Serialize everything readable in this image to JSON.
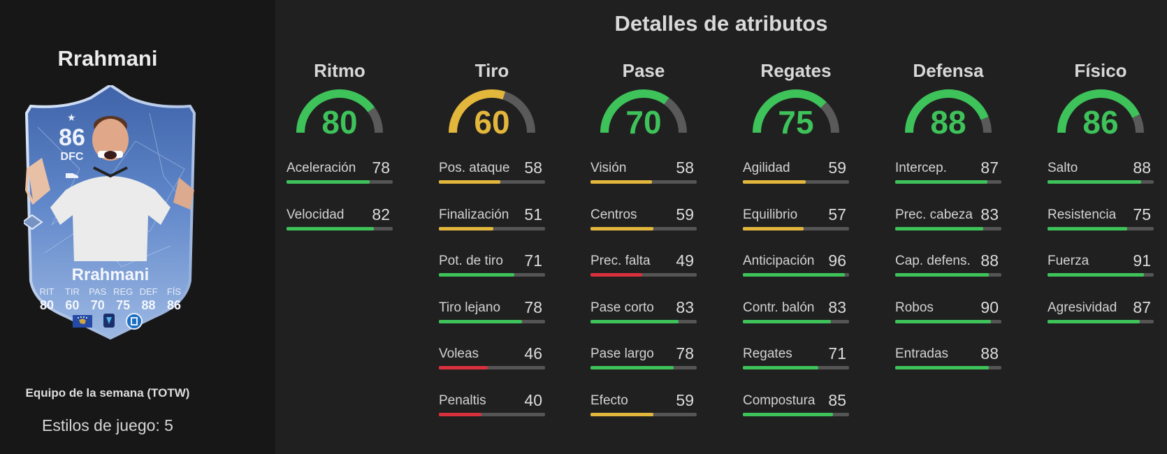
{
  "player": {
    "name": "Rrahmani",
    "edition": "Equipo de la semana (TOTW)",
    "playstyles": "Estilos de juego: 5"
  },
  "card": {
    "rating": "86",
    "position": "DFC",
    "name": "Rrahmani",
    "stats": [
      {
        "label": "RIT",
        "value": "80"
      },
      {
        "label": "TIR",
        "value": "60"
      },
      {
        "label": "PAS",
        "value": "70"
      },
      {
        "label": "REG",
        "value": "75"
      },
      {
        "label": "DEF",
        "value": "88"
      },
      {
        "label": "FÍS",
        "value": "86"
      }
    ]
  },
  "title": "Detalles de atributos",
  "colors": {
    "green": "#3ec25a",
    "yellow": "#e3b63c",
    "red": "#d9303d",
    "track": "#555555"
  },
  "categories": [
    {
      "name": "Ritmo",
      "value": 80,
      "stats": [
        {
          "name": "Aceleración",
          "value": 78
        },
        {
          "name": "Velocidad",
          "value": 82
        }
      ]
    },
    {
      "name": "Tiro",
      "value": 60,
      "stats": [
        {
          "name": "Pos. ataque",
          "value": 58
        },
        {
          "name": "Finalización",
          "value": 51
        },
        {
          "name": "Pot. de tiro",
          "value": 71
        },
        {
          "name": "Tiro lejano",
          "value": 78
        },
        {
          "name": "Voleas",
          "value": 46
        },
        {
          "name": "Penaltis",
          "value": 40
        }
      ]
    },
    {
      "name": "Pase",
      "value": 70,
      "stats": [
        {
          "name": "Visión",
          "value": 58
        },
        {
          "name": "Centros",
          "value": 59
        },
        {
          "name": "Prec. falta",
          "value": 49
        },
        {
          "name": "Pase corto",
          "value": 83
        },
        {
          "name": "Pase largo",
          "value": 78
        },
        {
          "name": "Efecto",
          "value": 59
        }
      ]
    },
    {
      "name": "Regates",
      "value": 75,
      "stats": [
        {
          "name": "Agilidad",
          "value": 59
        },
        {
          "name": "Equilibrio",
          "value": 57
        },
        {
          "name": "Anticipación",
          "value": 96
        },
        {
          "name": "Contr. balón",
          "value": 83
        },
        {
          "name": "Regates",
          "value": 71
        },
        {
          "name": "Compostura",
          "value": 85
        }
      ]
    },
    {
      "name": "Defensa",
      "value": 88,
      "stats": [
        {
          "name": "Intercep.",
          "value": 87
        },
        {
          "name": "Prec. cabeza",
          "value": 83
        },
        {
          "name": "Cap. defens.",
          "value": 88
        },
        {
          "name": "Robos",
          "value": 90
        },
        {
          "name": "Entradas",
          "value": 88
        }
      ]
    },
    {
      "name": "Físico",
      "value": 86,
      "stats": [
        {
          "name": "Salto",
          "value": 88
        },
        {
          "name": "Resistencia",
          "value": 75
        },
        {
          "name": "Fuerza",
          "value": 91
        },
        {
          "name": "Agresividad",
          "value": 87
        }
      ]
    }
  ]
}
